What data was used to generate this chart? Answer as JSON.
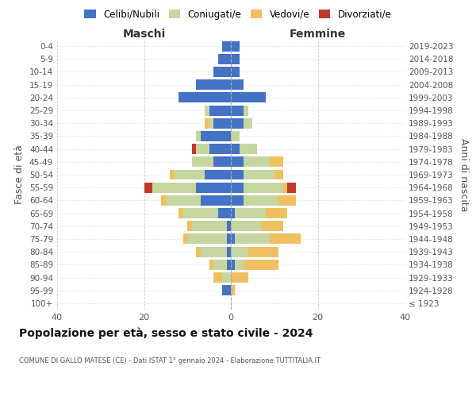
{
  "age_groups": [
    "100+",
    "95-99",
    "90-94",
    "85-89",
    "80-84",
    "75-79",
    "70-74",
    "65-69",
    "60-64",
    "55-59",
    "50-54",
    "45-49",
    "40-44",
    "35-39",
    "30-34",
    "25-29",
    "20-24",
    "15-19",
    "10-14",
    "5-9",
    "0-4"
  ],
  "birth_years": [
    "≤ 1923",
    "1924-1928",
    "1929-1933",
    "1934-1938",
    "1939-1943",
    "1944-1948",
    "1949-1953",
    "1954-1958",
    "1959-1963",
    "1964-1968",
    "1969-1973",
    "1974-1978",
    "1979-1983",
    "1984-1988",
    "1989-1993",
    "1994-1998",
    "1999-2003",
    "2004-2008",
    "2009-2013",
    "2014-2018",
    "2019-2023"
  ],
  "maschi": {
    "celibi": [
      0,
      2,
      0,
      1,
      1,
      1,
      1,
      3,
      7,
      8,
      6,
      4,
      5,
      7,
      4,
      5,
      12,
      8,
      4,
      3,
      2
    ],
    "coniugati": [
      0,
      0,
      2,
      3,
      6,
      9,
      8,
      8,
      8,
      10,
      7,
      5,
      3,
      1,
      1,
      1,
      0,
      0,
      0,
      0,
      0
    ],
    "vedovi": [
      0,
      0,
      2,
      1,
      1,
      1,
      1,
      1,
      1,
      0,
      1,
      0,
      0,
      0,
      1,
      0,
      0,
      0,
      0,
      0,
      0
    ],
    "divorziati": [
      0,
      0,
      0,
      0,
      0,
      0,
      0,
      0,
      0,
      2,
      0,
      0,
      1,
      0,
      0,
      0,
      0,
      0,
      0,
      0,
      0
    ]
  },
  "femmine": {
    "nubili": [
      0,
      0,
      0,
      1,
      0,
      1,
      0,
      1,
      3,
      3,
      3,
      3,
      2,
      0,
      3,
      3,
      8,
      3,
      2,
      2,
      2
    ],
    "coniugate": [
      0,
      0,
      0,
      2,
      4,
      8,
      7,
      7,
      8,
      9,
      7,
      6,
      4,
      2,
      2,
      1,
      0,
      0,
      0,
      0,
      0
    ],
    "vedove": [
      0,
      1,
      4,
      8,
      7,
      7,
      5,
      5,
      4,
      1,
      2,
      3,
      0,
      0,
      0,
      0,
      0,
      0,
      0,
      0,
      0
    ],
    "divorziate": [
      0,
      0,
      0,
      0,
      0,
      0,
      0,
      0,
      0,
      2,
      0,
      0,
      0,
      0,
      0,
      0,
      0,
      0,
      0,
      0,
      0
    ]
  },
  "colors": {
    "celibi_nubili": "#4472c4",
    "coniugati": "#c5d6a0",
    "vedovi": "#f0c060",
    "divorziati": "#c0392b"
  },
  "title": "Popolazione per età, sesso e stato civile - 2024",
  "subtitle": "COMUNE DI GALLO MATESE (CE) - Dati ISTAT 1° gennaio 2024 - Elaborazione TUTTITALIA.IT",
  "xlabel_left": "Maschi",
  "xlabel_right": "Femmine",
  "ylabel_left": "Fasce di età",
  "ylabel_right": "Anni di nascita",
  "xlim": 40,
  "bg_color": "#ffffff",
  "grid_color": "#cccccc"
}
